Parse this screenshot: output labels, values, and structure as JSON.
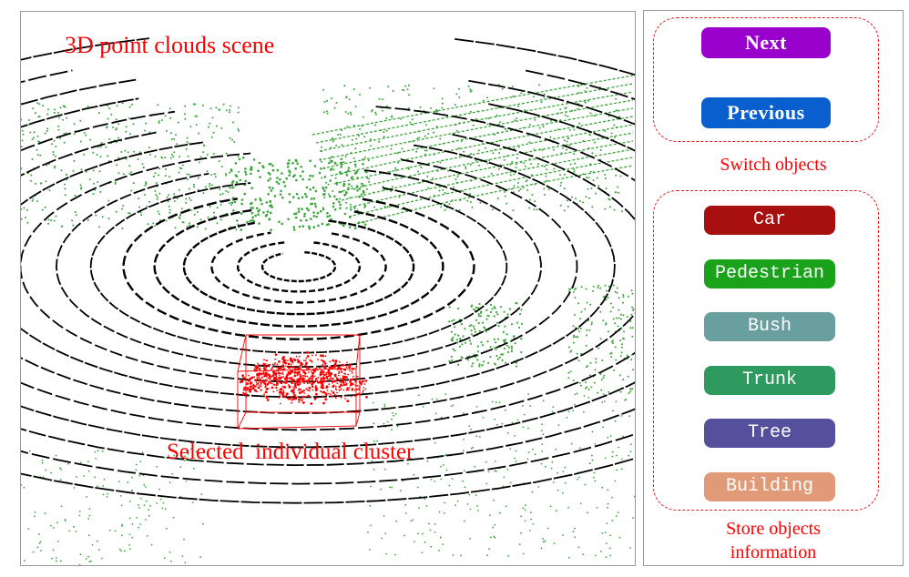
{
  "scene": {
    "title": "3D point clouds scene",
    "cluster_caption": "Selected  individual cluster",
    "colors": {
      "ground_rings": "#000000",
      "vegetation": "#3aa63a",
      "selected_cluster": "#ff0000"
    }
  },
  "controls": {
    "switch_group": {
      "label": "Switch objects",
      "buttons": [
        {
          "label": "Next",
          "color": "#9900cc"
        },
        {
          "label": "Previous",
          "color": "#0a5fcf"
        }
      ]
    },
    "store_group": {
      "label_line1": "Store objects",
      "label_line2": "information",
      "classes": [
        {
          "label": "Car",
          "color": "#a80f0f"
        },
        {
          "label": "Pedestrian",
          "color": "#1aa31a"
        },
        {
          "label": "Bush",
          "color": "#6a9fa0"
        },
        {
          "label": "Trunk",
          "color": "#2f9a5f"
        },
        {
          "label": "Tree",
          "color": "#54509c"
        },
        {
          "label": "Building",
          "color": "#e09a78"
        }
      ]
    }
  }
}
